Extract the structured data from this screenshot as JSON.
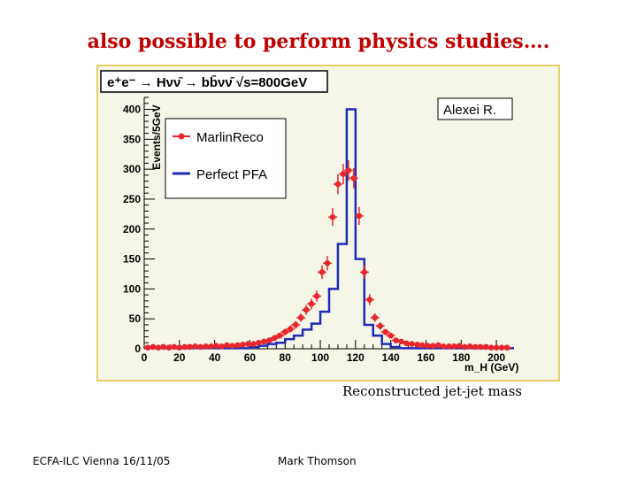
{
  "slide": {
    "title": "also possible to perform physics studies….",
    "caption": "Reconstructed jet-jet mass",
    "footer_left": "ECFA-ILC Vienna 16/11/05",
    "footer_center": "Mark Thomson"
  },
  "chart_data": {
    "type": "line",
    "title": "e⁺e⁻ → Hνν̄ → bb̄νν̄   √s=800GeV",
    "xlabel": "m_H (GeV)",
    "ylabel": "Events/5GeV",
    "credit": "Alexei R.",
    "xlim": [
      0,
      210
    ],
    "ylim": [
      0,
      420
    ],
    "grid": false,
    "legend_position": "top-left",
    "x_ticks": [
      0,
      20,
      40,
      60,
      80,
      100,
      120,
      140,
      160,
      180,
      200
    ],
    "y_ticks": [
      0,
      50,
      100,
      150,
      200,
      250,
      300,
      350,
      400
    ],
    "bin_width": 5,
    "colors": {
      "marlin": "#e8262b",
      "perfect": "#1f2bb5",
      "frame": "#e7cf6a",
      "background": "#f5f5e8"
    },
    "series": [
      {
        "name": "MarlinReco",
        "style": "points-with-errors",
        "x": [
          2,
          5,
          8,
          11,
          14,
          17,
          20,
          23,
          26,
          29,
          32,
          35,
          38,
          41,
          44,
          47,
          50,
          53,
          56,
          59,
          62,
          65,
          68,
          71,
          74,
          77,
          80,
          83,
          86,
          89,
          92,
          95,
          98,
          101,
          104,
          107,
          110,
          113,
          116,
          119,
          122,
          125,
          128,
          131,
          134,
          137,
          140,
          143,
          146,
          149,
          152,
          155,
          158,
          161,
          164,
          167,
          170,
          173,
          176,
          179,
          182,
          185,
          188,
          191,
          194,
          197,
          200,
          203,
          206
        ],
        "values": [
          2,
          3,
          2,
          3,
          2,
          3,
          2,
          3,
          3,
          4,
          3,
          4,
          4,
          5,
          4,
          6,
          5,
          6,
          7,
          8,
          8,
          10,
          12,
          14,
          18,
          22,
          28,
          33,
          40,
          52,
          65,
          75,
          88,
          128,
          143,
          220,
          275,
          292,
          298,
          285,
          222,
          128,
          82,
          52,
          38,
          28,
          22,
          14,
          12,
          9,
          8,
          7,
          6,
          5,
          5,
          6,
          4,
          4,
          4,
          5,
          3,
          4,
          3,
          3,
          3,
          2,
          2,
          2,
          2
        ]
      },
      {
        "name": "Perfect PFA",
        "style": "step",
        "edges": [
          0,
          60,
          65,
          70,
          75,
          80,
          85,
          90,
          95,
          100,
          105,
          110,
          115,
          120,
          125,
          130,
          135,
          140,
          145,
          210
        ],
        "values": [
          1,
          3,
          5,
          8,
          10,
          16,
          22,
          32,
          42,
          62,
          100,
          175,
          400,
          150,
          40,
          22,
          8,
          3,
          1
        ]
      }
    ]
  }
}
